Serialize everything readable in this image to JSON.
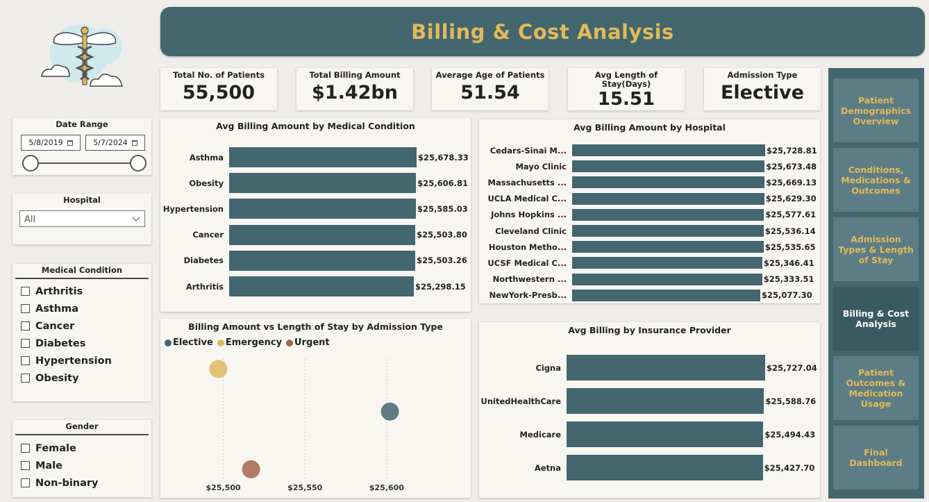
{
  "header": {
    "title": "Billing & Cost Analysis"
  },
  "kpis": [
    {
      "label": "Total No. of Patients",
      "value": "55,500"
    },
    {
      "label": "Total Billing Amount",
      "value": "$1.42bn"
    },
    {
      "label": "Average Age of Patients",
      "value": "51.54"
    },
    {
      "label": "Avg Length of Stay(Days)",
      "value": "15.51"
    },
    {
      "label": "Admission Type",
      "value": "Elective"
    }
  ],
  "date_range": {
    "title": "Date Range",
    "start": "5/8/2019",
    "end": "5/7/2024"
  },
  "hospital_filter": {
    "title": "Hospital",
    "selected": "All"
  },
  "medical_condition_filter": {
    "title": "Medical Condition",
    "options": [
      "Arthritis",
      "Asthma",
      "Cancer",
      "Diabetes",
      "Hypertension",
      "Obesity"
    ]
  },
  "gender_filter": {
    "title": "Gender",
    "options": [
      "Female",
      "Male",
      "Non-binary"
    ]
  },
  "nav": {
    "items": [
      "Patient Demographics Overview",
      "Conditions, Medications & Outcomes",
      "Admission Types & Length of Stay",
      "Billing & Cost Analysis",
      "Patient Outcomes & Medication Usage",
      "Final Dashboard"
    ],
    "active_index": 3
  },
  "colors": {
    "accent": "#43666f",
    "gold": "#e2b95a",
    "elective": "#43666f",
    "emergency": "#dcb85e",
    "urgent": "#a3644a"
  },
  "chart_data": [
    {
      "type": "bar",
      "title": "Avg Billing Amount by Medical Condition",
      "categories": [
        "Asthma",
        "Obesity",
        "Hypertension",
        "Cancer",
        "Diabetes",
        "Arthritis"
      ],
      "values": [
        25678.33,
        25606.81,
        25585.03,
        25503.8,
        25503.26,
        25298.15
      ],
      "labels": [
        "$25,678.33",
        "$25,606.81",
        "$25,585.03",
        "$25,503.80",
        "$25,503.26",
        "$25,298.15"
      ]
    },
    {
      "type": "bar",
      "title": "Avg Billing Amount by Hospital",
      "categories": [
        "Cedars-Sinai M...",
        "Mayo Clinic",
        "Massachusetts ...",
        "UCLA Medical C...",
        "Johns Hopkins ...",
        "Cleveland Clinic",
        "Houston Metho...",
        "UCSF Medical C...",
        "Northwestern ...",
        "NewYork-Presb..."
      ],
      "values": [
        25728.81,
        25673.48,
        25669.13,
        25629.3,
        25577.61,
        25536.14,
        25535.65,
        25346.41,
        25333.51,
        25077.3
      ],
      "labels": [
        "$25,728.81",
        "$25,673.48",
        "$25,669.13",
        "$25,629.30",
        "$25,577.61",
        "$25,536.14",
        "$25,535.65",
        "$25,346.41",
        "$25,333.51",
        "$25,077.30"
      ]
    },
    {
      "type": "scatter",
      "title": "Billing Amount vs Length of Stay by Admission Type",
      "legend": [
        "Elective",
        "Emergency",
        "Urgent"
      ],
      "x_ticks": [
        "$25,500",
        "$25,550",
        "$25,600"
      ],
      "xlim": [
        25470,
        25640
      ],
      "ylim": [
        15.3,
        15.7
      ],
      "series": [
        {
          "name": "Elective",
          "x": 25602,
          "y": 15.52
        },
        {
          "name": "Emergency",
          "x": 25497,
          "y": 15.66
        },
        {
          "name": "Urgent",
          "x": 25517,
          "y": 15.33
        }
      ]
    },
    {
      "type": "bar",
      "title": "Avg Billing by Insurance Provider",
      "categories": [
        "Cigna",
        "UnitedHealthCare",
        "Medicare",
        "Aetna"
      ],
      "values": [
        25727.04,
        25588.76,
        25494.43,
        25427.7
      ],
      "labels": [
        "$25,727.04",
        "$25,588.76",
        "$25,494.43",
        "$25,427.70"
      ]
    }
  ]
}
